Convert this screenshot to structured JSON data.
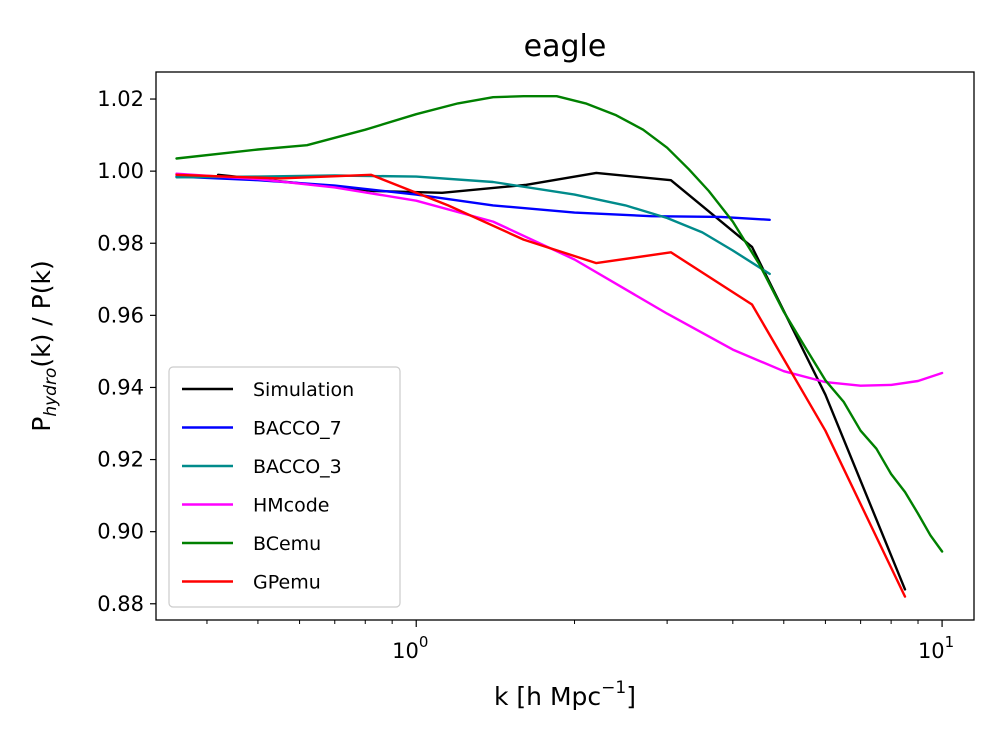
{
  "chart_data": {
    "type": "line",
    "title": "eagle",
    "xlabel": {
      "prefix": "k [h Mpc",
      "sup": "−1",
      "suffix": "]"
    },
    "ylabel": {
      "prefix": "P",
      "sub": "hydro",
      "suffix": "(k) / P(k)"
    },
    "xscale": "log",
    "xlim": [
      0.32,
      11.5
    ],
    "ylim": [
      0.8755,
      1.0275
    ],
    "yticks": [
      0.88,
      0.9,
      0.92,
      0.94,
      0.96,
      0.98,
      1.0,
      1.02
    ],
    "ytick_labels": [
      "0.88",
      "0.90",
      "0.92",
      "0.94",
      "0.96",
      "0.98",
      "1.00",
      "1.02"
    ],
    "xticks": [
      1,
      10
    ],
    "xtick_labels": [
      {
        "base": "10",
        "exp": "0"
      },
      {
        "base": "10",
        "exp": "1"
      }
    ],
    "legend_position": "lower-left",
    "series": [
      {
        "name": "Simulation",
        "color": "#000000",
        "x": [
          0.42,
          0.83,
          1.12,
          1.62,
          2.2,
          3.05,
          4.35,
          6.0,
          8.5
        ],
        "y": [
          0.999,
          0.9945,
          0.994,
          0.9962,
          0.9995,
          0.9975,
          0.979,
          0.938,
          0.884
        ]
      },
      {
        "name": "BACCO_7",
        "color": "#0000ff",
        "x": [
          0.35,
          0.5,
          0.7,
          1.0,
          1.4,
          2.0,
          2.8,
          3.8,
          4.7
        ],
        "y": [
          0.9985,
          0.9975,
          0.996,
          0.9935,
          0.9905,
          0.9885,
          0.9875,
          0.9873,
          0.9865
        ]
      },
      {
        "name": "BACCO_3",
        "color": "#008b8b",
        "x": [
          0.35,
          0.5,
          0.7,
          1.0,
          1.4,
          2.0,
          2.5,
          3.0,
          3.5,
          4.0,
          4.7
        ],
        "y": [
          0.9983,
          0.9985,
          0.9988,
          0.9985,
          0.997,
          0.9935,
          0.9905,
          0.987,
          0.983,
          0.978,
          0.9715
        ]
      },
      {
        "name": "HMcode",
        "color": "#ff00ff",
        "x": [
          0.35,
          0.5,
          0.7,
          1.0,
          1.4,
          2.0,
          3.0,
          4.0,
          5.0,
          6.0,
          7.0,
          8.0,
          9.0,
          10.0
        ],
        "y": [
          0.9993,
          0.9978,
          0.9955,
          0.9918,
          0.986,
          0.9755,
          0.9605,
          0.9505,
          0.9445,
          0.9415,
          0.9405,
          0.9407,
          0.9418,
          0.944
        ]
      },
      {
        "name": "BCemu",
        "color": "#008000",
        "x": [
          0.35,
          0.5,
          0.62,
          0.8,
          1.0,
          1.2,
          1.4,
          1.6,
          1.85,
          2.1,
          2.4,
          2.7,
          3.0,
          3.3,
          3.6,
          4.0,
          4.5,
          5.0,
          5.5,
          6.0,
          6.5,
          7.0,
          7.5,
          8.0,
          8.5,
          9.0,
          9.5,
          10.0
        ],
        "y": [
          1.0035,
          1.006,
          1.0072,
          1.0115,
          1.0158,
          1.0188,
          1.0205,
          1.0208,
          1.0208,
          1.0188,
          1.0155,
          1.0115,
          1.0065,
          1.0005,
          0.9945,
          0.986,
          0.974,
          0.961,
          0.951,
          0.942,
          0.936,
          0.928,
          0.923,
          0.916,
          0.911,
          0.905,
          0.899,
          0.8945
        ]
      },
      {
        "name": "GPemu",
        "color": "#ff0000",
        "x": [
          0.35,
          0.55,
          0.82,
          1.15,
          1.6,
          2.2,
          3.05,
          4.35,
          6.0,
          8.5
        ],
        "y": [
          0.999,
          0.998,
          0.999,
          0.9905,
          0.981,
          0.9745,
          0.9775,
          0.963,
          0.928,
          0.882
        ]
      }
    ]
  }
}
